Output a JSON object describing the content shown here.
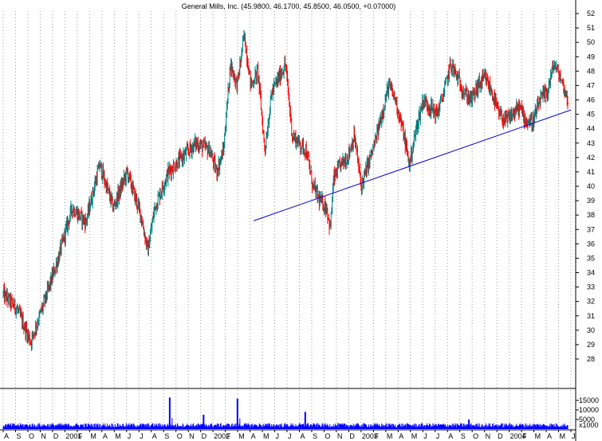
{
  "chart_data": {
    "type": "line",
    "title": "General Mills, Inc. (45.9800, 46.1700, 45.8500, 46.0500, +0.07000)",
    "price_axis": {
      "min": 27,
      "max": 53,
      "ticks": [
        28,
        29,
        30,
        31,
        32,
        33,
        34,
        35,
        36,
        37,
        38,
        39,
        40,
        41,
        42,
        43,
        44,
        45,
        46,
        47,
        48,
        49,
        50,
        51,
        52
      ]
    },
    "volume_axis": {
      "max": 20000,
      "ticks": [
        15000,
        10000,
        5000
      ],
      "unit_label": "x1000"
    },
    "x_labels": [
      "A",
      "S",
      "O",
      "N",
      "D",
      "2001",
      "F",
      "M",
      "A",
      "M",
      "J",
      "J",
      "A",
      "S",
      "O",
      "N",
      "D",
      "2002",
      "F",
      "M",
      "A",
      "M",
      "J",
      "J",
      "A",
      "S",
      "O",
      "N",
      "D",
      "2003",
      "F",
      "M",
      "A",
      "M",
      "J",
      "J",
      "A",
      "S",
      "O",
      "N",
      "D",
      "2004",
      "F",
      "M",
      "A",
      "M",
      "J"
    ],
    "price_keypoints": [
      [
        0,
        32.5
      ],
      [
        2,
        31.5
      ],
      [
        4,
        29.2
      ],
      [
        6,
        32.0
      ],
      [
        8,
        35.0
      ],
      [
        10,
        38.5
      ],
      [
        12,
        37.5
      ],
      [
        14,
        41.5
      ],
      [
        16,
        38.5
      ],
      [
        18,
        41.0
      ],
      [
        20,
        38.0
      ],
      [
        21,
        35.5
      ],
      [
        22,
        38.5
      ],
      [
        24,
        41.0
      ],
      [
        26,
        42.0
      ],
      [
        28,
        43.0
      ],
      [
        30,
        42.5
      ],
      [
        31,
        41.0
      ],
      [
        32,
        42.5
      ],
      [
        33,
        48.5
      ],
      [
        34,
        47.0
      ],
      [
        35,
        50.5
      ],
      [
        36,
        47.0
      ],
      [
        37,
        48.0
      ],
      [
        38,
        42.5
      ],
      [
        39,
        46.5
      ],
      [
        40,
        47.5
      ],
      [
        41,
        48.5
      ],
      [
        42,
        43.5
      ],
      [
        43,
        43.0
      ],
      [
        44,
        42.5
      ],
      [
        45,
        40.0
      ],
      [
        46,
        39.0
      ],
      [
        47,
        38.5
      ],
      [
        47.5,
        37.0
      ],
      [
        48,
        40.5
      ],
      [
        49,
        41.5
      ],
      [
        50,
        42.0
      ],
      [
        51,
        43.5
      ],
      [
        52,
        40.0
      ],
      [
        53,
        41.5
      ],
      [
        54,
        43.0
      ],
      [
        55,
        45.0
      ],
      [
        56,
        47.0
      ],
      [
        57,
        46.0
      ],
      [
        58,
        44.0
      ],
      [
        59,
        41.5
      ],
      [
        60,
        44.0
      ],
      [
        61,
        46.0
      ],
      [
        62,
        45.5
      ],
      [
        63,
        45.0
      ],
      [
        64,
        46.5
      ],
      [
        65,
        48.5
      ],
      [
        66,
        47.5
      ],
      [
        67,
        46.5
      ],
      [
        68,
        46.0
      ],
      [
        69,
        47.0
      ],
      [
        70,
        47.5
      ],
      [
        71,
        46.5
      ],
      [
        72,
        45.0
      ],
      [
        73,
        44.5
      ],
      [
        74,
        45.0
      ],
      [
        75,
        45.5
      ],
      [
        76,
        44.5
      ],
      [
        77,
        44.5
      ],
      [
        78,
        46.0
      ],
      [
        79,
        46.5
      ],
      [
        80,
        48.5
      ],
      [
        81,
        47.5
      ],
      [
        82,
        46.0
      ]
    ],
    "trendline": {
      "start": [
        1.06,
        37.6
      ],
      "end": [
        2.36,
        45.3
      ]
    },
    "volume_spikes": [
      {
        "position": 0.295,
        "value": 16500
      },
      {
        "position": 0.355,
        "value": 7500
      },
      {
        "position": 0.415,
        "value": 16000
      },
      {
        "position": 0.535,
        "value": 9000
      },
      {
        "position": 0.825,
        "value": 5000
      }
    ],
    "colors": {
      "up": "#008080",
      "down": "#ff0000",
      "trendline": "#0000cc",
      "volume": "#0000ff",
      "grid": "#9a9a9a"
    }
  }
}
